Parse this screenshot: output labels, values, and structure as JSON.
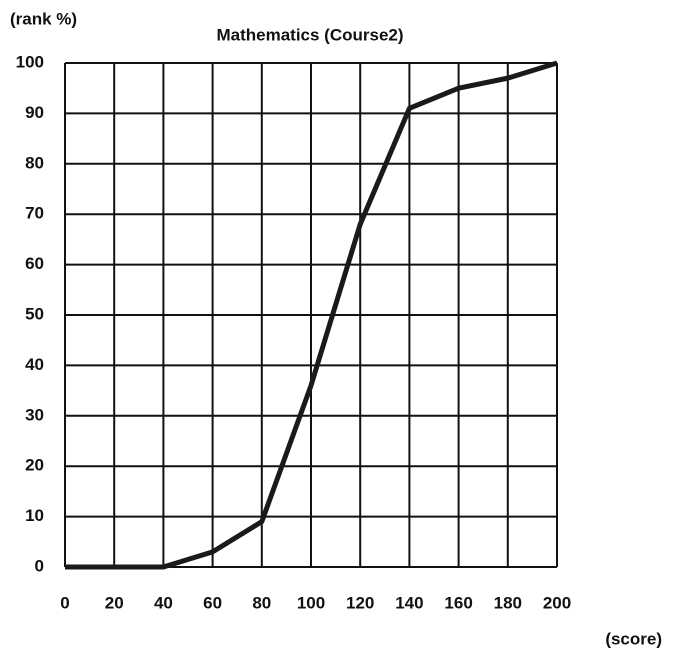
{
  "chart_data": {
    "type": "line",
    "title": "Mathematics (Course2)",
    "ylabel": "(rank %)",
    "xlabel": "(score)",
    "x": [
      0,
      20,
      40,
      60,
      80,
      100,
      120,
      140,
      160,
      180,
      200
    ],
    "series": [
      {
        "name": "Mathematics (Course2)",
        "color": "#1a1a1a",
        "values": [
          0,
          0,
          0,
          3,
          9,
          36,
          68,
          91,
          95,
          97,
          100
        ]
      }
    ],
    "xlim": [
      0,
      200
    ],
    "xticks": [
      0,
      20,
      40,
      60,
      80,
      100,
      120,
      140,
      160,
      180,
      200
    ],
    "ylim": [
      0,
      100
    ],
    "yticks": [
      0,
      10,
      20,
      30,
      40,
      50,
      60,
      70,
      80,
      90,
      100
    ],
    "grid": true
  }
}
